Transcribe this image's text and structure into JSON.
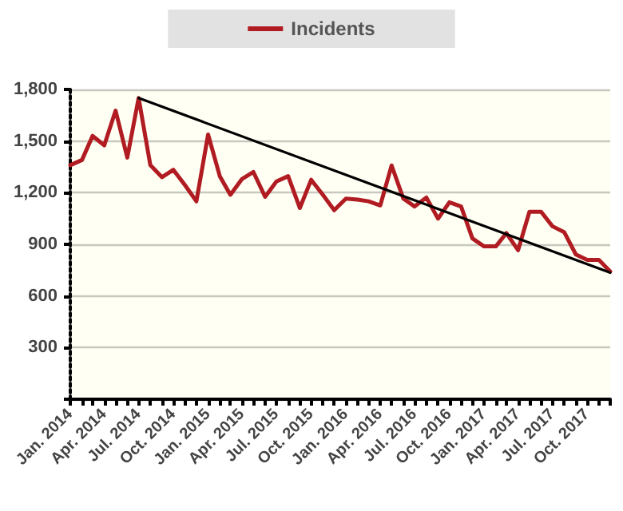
{
  "chart_data": {
    "type": "line",
    "x": [
      "2014-01",
      "2014-02",
      "2014-03",
      "2014-04",
      "2014-05",
      "2014-06",
      "2014-07",
      "2014-08",
      "2014-09",
      "2014-10",
      "2014-11",
      "2014-12",
      "2015-01",
      "2015-02",
      "2015-03",
      "2015-04",
      "2015-05",
      "2015-06",
      "2015-07",
      "2015-08",
      "2015-09",
      "2015-10",
      "2015-11",
      "2015-12",
      "2016-01",
      "2016-02",
      "2016-03",
      "2016-04",
      "2016-05",
      "2016-06",
      "2016-07",
      "2016-08",
      "2016-09",
      "2016-10",
      "2016-11",
      "2016-12",
      "2017-01",
      "2017-02",
      "2017-03",
      "2017-04",
      "2017-05",
      "2017-06",
      "2017-07",
      "2017-08",
      "2017-09",
      "2017-10",
      "2017-11",
      "2017-12"
    ],
    "series": [
      {
        "name": "Incidents",
        "color": "#b01c22",
        "values": [
          1360,
          1390,
          1530,
          1475,
          1677,
          1404,
          1750,
          1360,
          1290,
          1333,
          1243,
          1150,
          1538,
          1296,
          1188,
          1280,
          1320,
          1176,
          1265,
          1296,
          1111,
          1275,
          1188,
          1098,
          1166,
          1160,
          1150,
          1126,
          1358,
          1166,
          1120,
          1172,
          1049,
          1144,
          1120,
          934,
          888,
          888,
          965,
          866,
          1089,
          1089,
          1005,
          971,
          841,
          810,
          810,
          742
        ]
      },
      {
        "type": "line",
        "color": "#000000",
        "x": [
          "2014-07",
          "2017-12"
        ],
        "values": [
          1750,
          735
        ]
      }
    ],
    "xlim": [
      "2014-01",
      "2017-12"
    ],
    "xticks": [
      {
        "value": "2014-01",
        "label": "Jan. 2014"
      },
      {
        "value": "2014-02",
        "label": null
      },
      {
        "value": "2014-03",
        "label": null
      },
      {
        "value": "2014-04",
        "label": "Apr. 2014"
      },
      {
        "value": "2014-05",
        "label": null
      },
      {
        "value": "2014-06",
        "label": null
      },
      {
        "value": "2014-07",
        "label": "Jul. 2014"
      },
      {
        "value": "2014-08",
        "label": null
      },
      {
        "value": "2014-09",
        "label": null
      },
      {
        "value": "2014-10",
        "label": "Oct. 2014"
      },
      {
        "value": "2014-11",
        "label": null
      },
      {
        "value": "2014-12",
        "label": null
      },
      {
        "value": "2015-01",
        "label": "Jan. 2015"
      },
      {
        "value": "2015-02",
        "label": null
      },
      {
        "value": "2015-03",
        "label": null
      },
      {
        "value": "2015-04",
        "label": "Apr. 2015"
      },
      {
        "value": "2015-05",
        "label": null
      },
      {
        "value": "2015-06",
        "label": null
      },
      {
        "value": "2015-07",
        "label": "Jul. 2015"
      },
      {
        "value": "2015-08",
        "label": null
      },
      {
        "value": "2015-09",
        "label": null
      },
      {
        "value": "2015-10",
        "label": "Oct. 2015"
      },
      {
        "value": "2015-11",
        "label": null
      },
      {
        "value": "2015-12",
        "label": null
      },
      {
        "value": "2016-01",
        "label": "Jan. 2016"
      },
      {
        "value": "2016-02",
        "label": null
      },
      {
        "value": "2016-03",
        "label": null
      },
      {
        "value": "2016-04",
        "label": "Apr. 2016"
      },
      {
        "value": "2016-05",
        "label": null
      },
      {
        "value": "2016-06",
        "label": null
      },
      {
        "value": "2016-07",
        "label": "Jul. 2016"
      },
      {
        "value": "2016-08",
        "label": null
      },
      {
        "value": "2016-09",
        "label": null
      },
      {
        "value": "2016-10",
        "label": "Oct. 2016"
      },
      {
        "value": "2016-11",
        "label": null
      },
      {
        "value": "2016-12",
        "label": null
      },
      {
        "value": "2017-01",
        "label": "Jan. 2017"
      },
      {
        "value": "2017-02",
        "label": null
      },
      {
        "value": "2017-03",
        "label": null
      },
      {
        "value": "2017-04",
        "label": "Apr. 2017"
      },
      {
        "value": "2017-05",
        "label": null
      },
      {
        "value": "2017-06",
        "label": null
      },
      {
        "value": "2017-07",
        "label": "Jul. 2017"
      },
      {
        "value": "2017-08",
        "label": null
      },
      {
        "value": "2017-09",
        "label": null
      },
      {
        "value": "2017-10",
        "label": "Oct. 2017"
      },
      {
        "value": "2017-11",
        "label": null
      },
      {
        "value": "2017-12",
        "label": null
      }
    ],
    "ylim": [
      0,
      1800
    ],
    "yticks": [
      {
        "value": 0,
        "label": null
      },
      {
        "value": 300,
        "label": "300"
      },
      {
        "value": 600,
        "label": "600"
      },
      {
        "value": 900,
        "label": "900"
      },
      {
        "value": 1200,
        "label": "1,200"
      },
      {
        "value": 1500,
        "label": "1,500"
      },
      {
        "value": 1800,
        "label": "1,800"
      }
    ],
    "grid": "y",
    "legend": "top",
    "marker": "none",
    "line_style": "solid"
  }
}
